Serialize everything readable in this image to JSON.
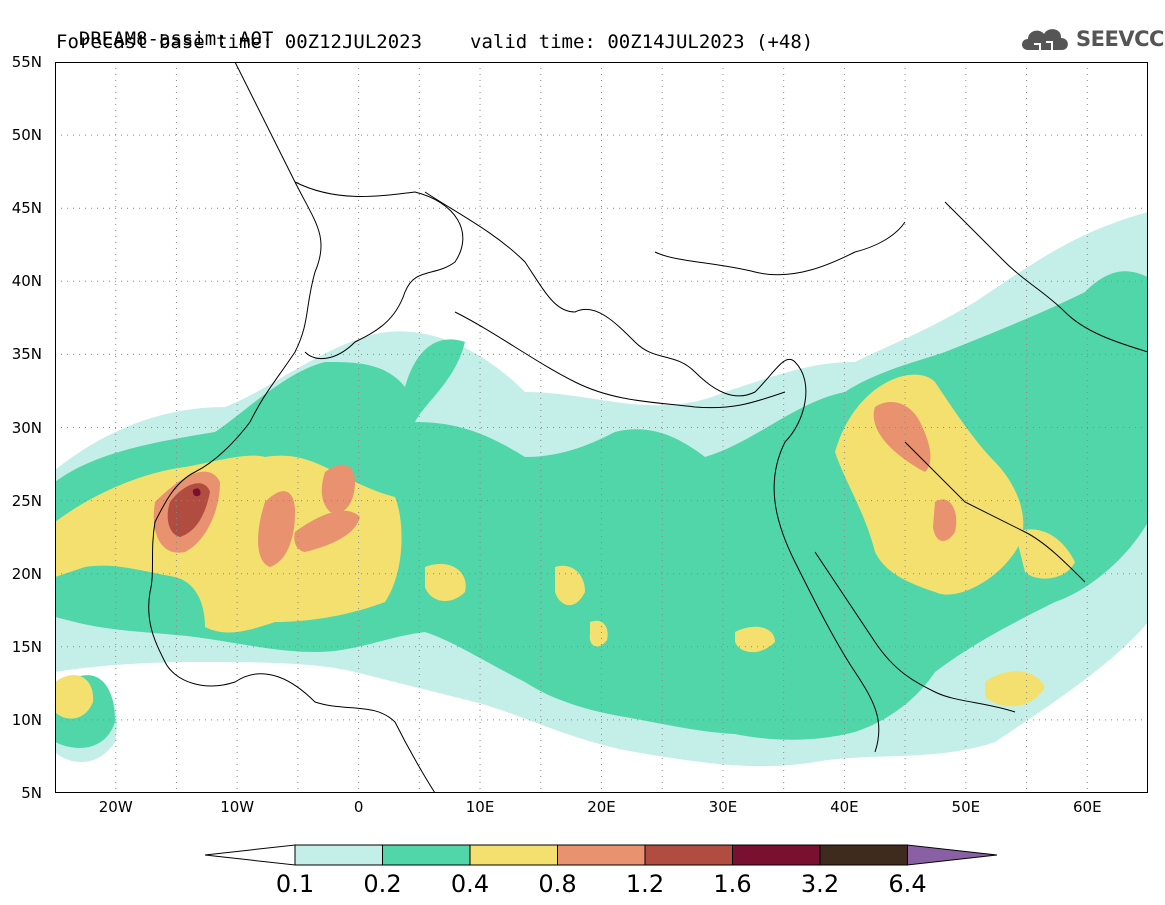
{
  "header": {
    "title_line1": "DREAM8-assim: AOT",
    "base_time": "Forecast base time: 00Z12JUL2023",
    "valid_time": "valid time: 00Z14JUL2023 (+48)",
    "logo_text": "SEEVCCC"
  },
  "map": {
    "lon_range": [
      -25,
      65
    ],
    "lat_range": [
      5,
      55
    ],
    "lat_labels": [
      "55N",
      "50N",
      "45N",
      "40N",
      "35N",
      "30N",
      "25N",
      "20N",
      "15N",
      "10N",
      "5N"
    ],
    "lon_labels": [
      "20W",
      "10W",
      "0",
      "10E",
      "20E",
      "30E",
      "40E",
      "50E",
      "60E"
    ],
    "coastline_color": "#000000",
    "grid": "dotted"
  },
  "legend": {
    "labels": [
      "0.1",
      "0.2",
      "0.4",
      "0.8",
      "1.2",
      "1.6",
      "3.2",
      "6.4"
    ],
    "colors": [
      "#ffffff",
      "#c4eee8",
      "#50d6a8",
      "#f4e06e",
      "#e89270",
      "#b04c40",
      "#7a1030",
      "#3f2a1e",
      "#8a60a4"
    ]
  }
}
